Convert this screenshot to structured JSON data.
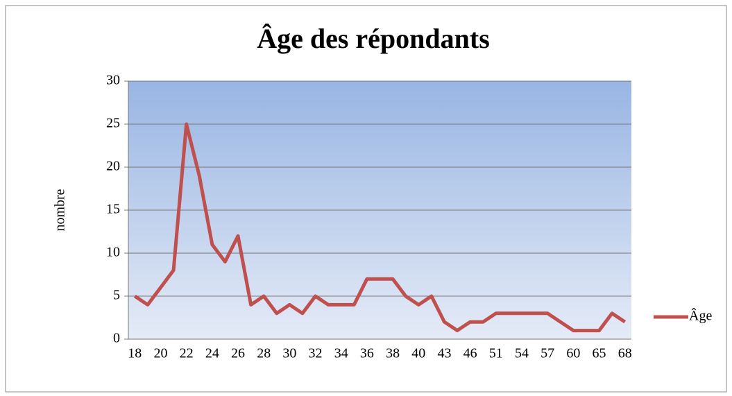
{
  "chart_data": {
    "type": "line",
    "title": "Âge des répondants",
    "y_label": "nombre",
    "categories": [
      "18",
      null,
      "20",
      null,
      "22",
      null,
      "24",
      null,
      "26",
      null,
      "28",
      null,
      "30",
      null,
      "32",
      null,
      "34",
      null,
      "36",
      null,
      "38",
      null,
      "40",
      null,
      "43",
      null,
      "46",
      null,
      "51",
      null,
      "54",
      null,
      "57",
      null,
      "60",
      null,
      "65",
      null,
      "68"
    ],
    "series": [
      {
        "name": "Âge",
        "color": "#c0504d",
        "values": [
          5,
          4,
          6,
          8,
          25,
          19,
          11,
          9,
          12,
          4,
          5,
          3,
          4,
          3,
          5,
          4,
          4,
          4,
          7,
          7,
          7,
          5,
          4,
          5,
          2,
          1,
          2,
          2,
          3,
          3,
          3,
          3,
          3,
          2,
          1,
          1,
          1,
          3,
          2
        ]
      }
    ],
    "ylim": [
      0,
      30
    ],
    "yticks": [
      0,
      5,
      10,
      15,
      20,
      25,
      30
    ],
    "grid": true,
    "legend": "right"
  }
}
